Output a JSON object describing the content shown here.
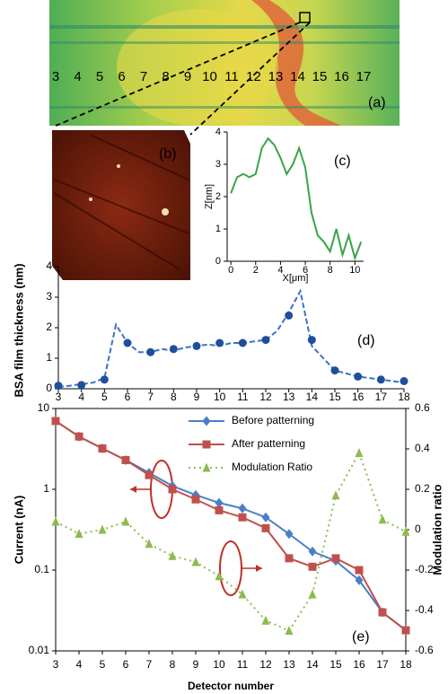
{
  "panel_a": {
    "labels": [
      "3",
      "4",
      "5",
      "6",
      "7",
      "8",
      "9",
      "10",
      "11",
      "12",
      "13",
      "14",
      "15",
      "16",
      "17"
    ],
    "tag": "(a)"
  },
  "panel_b": {
    "tag": "(b)"
  },
  "chart_data": [
    {
      "type": "line",
      "label": "(c)",
      "xlabel": "X[μm]",
      "ylabel": "Z[nm]",
      "x": [
        0,
        0.5,
        1,
        1.5,
        2,
        2.5,
        3,
        3.5,
        4,
        4.5,
        5,
        5.5,
        6,
        6.5,
        7,
        7.5,
        8,
        8.5,
        9,
        9.5,
        10,
        10.5
      ],
      "series": [
        {
          "color": "#3aa34a",
          "style": "solid",
          "values": [
            2.1,
            2.6,
            2.7,
            2.6,
            2.7,
            3.5,
            3.8,
            3.6,
            3.2,
            2.7,
            3.0,
            3.5,
            2.9,
            1.5,
            0.8,
            0.6,
            0.3,
            1.0,
            0.2,
            0.8,
            0.1,
            0.6
          ]
        }
      ],
      "xlim": [
        -0.3,
        10.7
      ],
      "ylim": [
        0,
        4
      ],
      "xticks": [
        0,
        2,
        4,
        6,
        8,
        10
      ],
      "yticks": [
        0,
        1,
        2,
        3,
        4
      ]
    },
    {
      "type": "line",
      "label": "(d)",
      "ylabel": "BSA film thickness (nm)",
      "x": [
        3,
        4,
        5,
        6,
        7,
        8,
        9,
        10,
        11,
        12,
        13,
        14,
        15,
        16,
        17,
        18
      ],
      "series": [
        {
          "color": "#3a73c9",
          "style": "dashed",
          "x": [
            3,
            3.5,
            4,
            4.5,
            5,
            5.5,
            6,
            6.5,
            7,
            7.5,
            8,
            8.5,
            9,
            9.5,
            10,
            10.5,
            11,
            11.5,
            12,
            12.5,
            13,
            13.5,
            14,
            14.5,
            15,
            15.5,
            16,
            16.5,
            17,
            17.5,
            18
          ],
          "values": [
            0.05,
            0.1,
            0.15,
            0.2,
            0.35,
            2.1,
            1.5,
            1.2,
            1.2,
            1.3,
            1.25,
            1.35,
            1.4,
            1.45,
            1.4,
            1.5,
            1.5,
            1.55,
            1.6,
            1.9,
            2.5,
            3.2,
            1.4,
            1.0,
            0.6,
            0.5,
            0.4,
            0.35,
            0.3,
            0.25,
            0.2
          ]
        },
        {
          "color": "#1f4e9c",
          "style": "none",
          "marker": "circle",
          "values": [
            0.1,
            0.12,
            0.3,
            1.5,
            1.2,
            1.3,
            1.4,
            1.5,
            1.5,
            1.6,
            2.4,
            1.6,
            0.6,
            0.4,
            0.3,
            0.25
          ]
        }
      ],
      "xlim": [
        3,
        18
      ],
      "ylim": [
        0,
        4
      ],
      "xticks": [
        3,
        4,
        5,
        6,
        7,
        8,
        9,
        10,
        11,
        12,
        13,
        14,
        15,
        16,
        17,
        18
      ],
      "yticks": [
        0,
        1,
        2,
        3,
        4
      ]
    },
    {
      "type": "line",
      "label": "(e)",
      "xlabel": "Detector number",
      "ylabel": "Current (nA)",
      "y2label": "Modulation ratio",
      "ylog": true,
      "legend": "upper center",
      "x": [
        3,
        4,
        5,
        6,
        7,
        8,
        9,
        10,
        11,
        12,
        13,
        14,
        15,
        16,
        17,
        18
      ],
      "series": [
        {
          "name": "Before patterning",
          "color": "#4a7ec8",
          "style": "solid",
          "marker": "diamond",
          "values": [
            7,
            4.5,
            3.2,
            2.3,
            1.6,
            1.1,
            0.85,
            0.68,
            0.58,
            0.45,
            0.28,
            0.17,
            0.13,
            0.075,
            0.03,
            0.018
          ]
        },
        {
          "name": "After patterning",
          "color": "#c0504d",
          "style": "solid",
          "marker": "square",
          "values": [
            7,
            4.5,
            3.2,
            2.3,
            1.5,
            1.0,
            0.75,
            0.55,
            0.45,
            0.33,
            0.14,
            0.11,
            0.14,
            0.1,
            0.03,
            0.018
          ]
        },
        {
          "name": "Modulation Ratio",
          "color": "#8dbb4f",
          "style": "dotted",
          "marker": "triangle",
          "axis": "y2",
          "values": [
            0.04,
            -0.02,
            0.0,
            0.04,
            -0.07,
            -0.13,
            -0.16,
            -0.23,
            -0.32,
            -0.45,
            -0.5,
            -0.32,
            0.17,
            0.38,
            0.05,
            -0.01
          ]
        }
      ],
      "xlim": [
        3,
        18
      ],
      "ylim": [
        0.01,
        10
      ],
      "y2lim": [
        -0.6,
        0.6
      ],
      "xticks": [
        3,
        4,
        5,
        6,
        7,
        8,
        9,
        10,
        11,
        12,
        13,
        14,
        15,
        16,
        17,
        18
      ],
      "yticks": [
        0.01,
        0.1,
        1,
        10
      ],
      "y2ticks": [
        -0.6,
        -0.4,
        -0.2,
        0,
        0.2,
        0.4,
        0.6
      ]
    }
  ]
}
